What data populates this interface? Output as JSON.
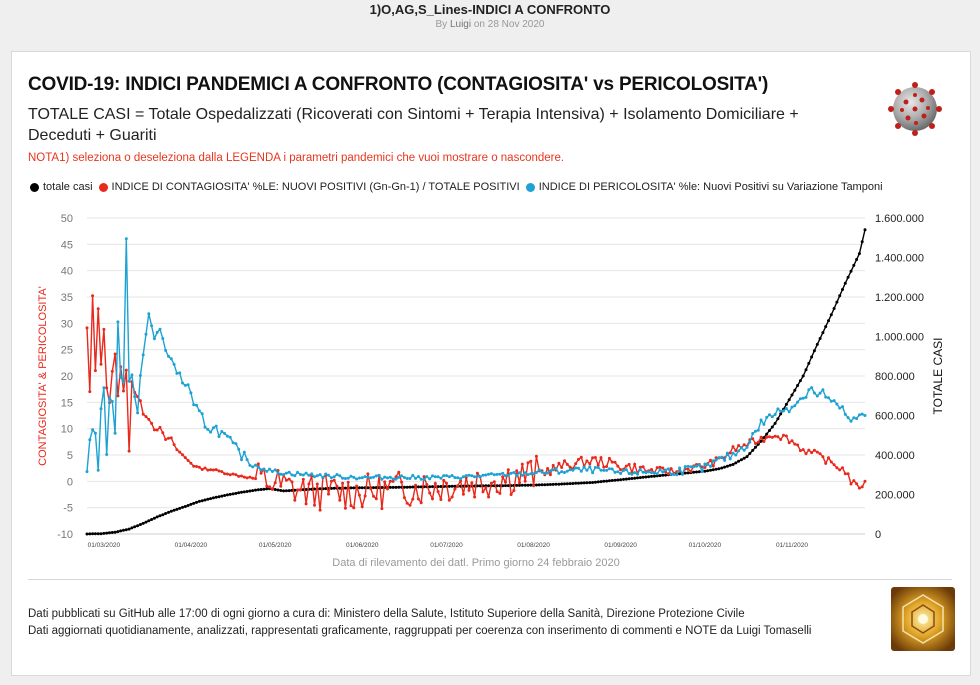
{
  "page": {
    "title": "1)O,AG,S_Lines-INDICI A CONFRONTO",
    "by_prefix": "By",
    "author": "Luigi",
    "date_text": "on 28 Nov 2020"
  },
  "card": {
    "title": "COVID-19: INDICI PANDEMICI A CONFRONTO (CONTAGIOSITA' vs PERICOLOSITA')",
    "subtitle": "TOTALE CASI = Totale Ospedalizzati (Ricoverati con Sintomi + Terapia Intensiva) + Isolamento Domiciliare + Deceduti + Guariti",
    "note": "NOTA1) seleziona o deseleziona dalla LEGENDA i parametri pandemici che vuoi mostrare o nascondere."
  },
  "legend": [
    {
      "label": "totale casi",
      "color": "#000000"
    },
    {
      "label": "INDICE DI CONTAGIOSITA' %LE: NUOVI POSITIVI (Gn-Gn-1) / TOTALE POSITIVI",
      "color": "#e8291c"
    },
    {
      "label": "INDICE DI PERICOLOSITA' %le: Nuovi Positivi su Variazione Tamponi",
      "color": "#1ea2d3"
    }
  ],
  "chart_data": {
    "type": "line",
    "title": "COVID-19: INDICI PANDEMICI A CONFRONTO (CONTAGIOSITA' vs PERICOLOSITA')",
    "xlabel": "Data di rilevamento dei datl. Primo giorno 24 febbraio 2020",
    "ylabel_left": "CONTAGIOSITA' & PERICOLOSITA'",
    "ylabel_right": "TOTALE CASI",
    "ylim_left": [
      -10,
      50
    ],
    "ylim_right": [
      0,
      1600000
    ],
    "yticks_left": [
      -10,
      -5,
      0,
      5,
      10,
      15,
      20,
      25,
      30,
      35,
      40,
      45,
      50
    ],
    "yticks_right": [
      {
        "value": 0,
        "label": "0"
      },
      {
        "value": 200000,
        "label": "200.000"
      },
      {
        "value": 400000,
        "label": "400.000"
      },
      {
        "value": 600000,
        "label": "600.000"
      },
      {
        "value": 800000,
        "label": "800.000"
      },
      {
        "value": 1000000,
        "label": "1.000.000"
      },
      {
        "value": 1200000,
        "label": "1.200.000"
      },
      {
        "value": 1400000,
        "label": "1.400.000"
      },
      {
        "value": 1600000,
        "label": "1.600.000"
      }
    ],
    "xlim_days": [
      0,
      277
    ],
    "xticks": [
      {
        "day": 6,
        "label": "01/03/2020"
      },
      {
        "day": 37,
        "label": "01/04/2020"
      },
      {
        "day": 67,
        "label": "01/05/2020"
      },
      {
        "day": 98,
        "label": "01/06/2020"
      },
      {
        "day": 128,
        "label": "01/07/2020"
      },
      {
        "day": 159,
        "label": "01/08/2020"
      },
      {
        "day": 190,
        "label": "01/09/2020"
      },
      {
        "day": 220,
        "label": "01/10/2020"
      },
      {
        "day": 251,
        "label": "01/11/2020"
      }
    ],
    "series": [
      {
        "name": "totale casi",
        "axis": "right",
        "color": "#000000",
        "keypoints": [
          [
            0,
            230
          ],
          [
            5,
            1700
          ],
          [
            10,
            9200
          ],
          [
            15,
            25000
          ],
          [
            20,
            53600
          ],
          [
            25,
            86500
          ],
          [
            30,
            115000
          ],
          [
            35,
            139400
          ],
          [
            40,
            165000
          ],
          [
            45,
            183000
          ],
          [
            50,
            198000
          ],
          [
            55,
            211000
          ],
          [
            60,
            222100
          ],
          [
            65,
            230000
          ],
          [
            70,
            218000
          ],
          [
            75,
            223000
          ],
          [
            80,
            227000
          ],
          [
            85,
            230000
          ],
          [
            90,
            232000
          ],
          [
            95,
            233500
          ],
          [
            100,
            234500
          ],
          [
            110,
            236000
          ],
          [
            120,
            239000
          ],
          [
            130,
            241500
          ],
          [
            140,
            243500
          ],
          [
            150,
            245000
          ],
          [
            160,
            248000
          ],
          [
            170,
            253500
          ],
          [
            180,
            261000
          ],
          [
            190,
            275000
          ],
          [
            200,
            290000
          ],
          [
            210,
            304000
          ],
          [
            220,
            318000
          ],
          [
            225,
            330000
          ],
          [
            230,
            352000
          ],
          [
            235,
            392000
          ],
          [
            240,
            470000
          ],
          [
            245,
            560000
          ],
          [
            250,
            680000
          ],
          [
            255,
            800000
          ],
          [
            260,
            960000
          ],
          [
            265,
            1110000
          ],
          [
            270,
            1270000
          ],
          [
            275,
            1420000
          ],
          [
            277,
            1540000
          ]
        ]
      },
      {
        "name": "INDICE DI CONTAGIOSITA' %LE: NUOVI POSITIVI (Gn-Gn-1) / TOTALE POSITIVI",
        "axis": "left",
        "color": "#e8291c",
        "keypoints": [
          [
            0,
            29
          ],
          [
            1,
            17
          ],
          [
            2,
            35
          ],
          [
            3,
            21
          ],
          [
            4,
            33
          ],
          [
            5,
            22
          ],
          [
            6,
            29
          ],
          [
            7,
            18
          ],
          [
            8,
            15
          ],
          [
            9,
            21
          ],
          [
            10,
            24
          ],
          [
            11,
            16
          ],
          [
            12,
            22
          ],
          [
            13,
            17
          ],
          [
            14,
            21
          ],
          [
            15,
            6
          ],
          [
            16,
            19
          ],
          [
            17,
            17
          ],
          [
            18,
            16
          ],
          [
            19,
            15
          ],
          [
            20,
            13
          ],
          [
            22,
            12
          ],
          [
            24,
            10
          ],
          [
            26,
            10
          ],
          [
            28,
            8
          ],
          [
            30,
            8
          ],
          [
            32,
            6
          ],
          [
            34,
            5
          ],
          [
            36,
            4
          ],
          [
            38,
            3
          ],
          [
            40,
            2.5
          ],
          [
            45,
            2.2
          ],
          [
            50,
            1.5
          ],
          [
            55,
            1
          ],
          [
            60,
            0.5
          ],
          [
            65,
            0
          ],
          [
            70,
            -1
          ],
          [
            75,
            -1.5
          ],
          [
            80,
            -2
          ],
          [
            90,
            -2
          ],
          [
            100,
            -2
          ],
          [
            110,
            -1.5
          ],
          [
            120,
            -1
          ],
          [
            130,
            -0.5
          ],
          [
            140,
            0
          ],
          [
            150,
            0.8
          ],
          [
            160,
            1.5
          ],
          [
            165,
            2.2
          ],
          [
            170,
            3
          ],
          [
            175,
            3.5
          ],
          [
            180,
            4
          ],
          [
            185,
            3.5
          ],
          [
            190,
            3
          ],
          [
            195,
            2.5
          ],
          [
            200,
            2
          ],
          [
            205,
            2
          ],
          [
            210,
            1.8
          ],
          [
            215,
            2.5
          ],
          [
            220,
            3
          ],
          [
            225,
            4
          ],
          [
            230,
            6
          ],
          [
            235,
            7
          ],
          [
            240,
            8
          ],
          [
            245,
            9
          ],
          [
            250,
            8
          ],
          [
            255,
            6
          ],
          [
            260,
            5
          ],
          [
            265,
            3.5
          ],
          [
            270,
            2
          ],
          [
            272,
            0
          ],
          [
            274,
            -1
          ],
          [
            277,
            -0.5
          ]
        ],
        "noise": [
          [
            0,
            30,
            0.3
          ],
          [
            30,
            60,
            0.2
          ],
          [
            60,
            160,
            3.5
          ],
          [
            160,
            200,
            1.0
          ],
          [
            200,
            277,
            0.7
          ]
        ]
      },
      {
        "name": "INDICE DI PERICOLOSITA' %le: Nuovi Positivi su Variazione Tamponi",
        "axis": "left",
        "color": "#1ea2d3",
        "keypoints": [
          [
            0,
            2
          ],
          [
            1,
            8
          ],
          [
            2,
            10
          ],
          [
            3,
            9
          ],
          [
            4,
            2
          ],
          [
            5,
            14
          ],
          [
            6,
            18
          ],
          [
            7,
            5
          ],
          [
            8,
            16
          ],
          [
            9,
            15
          ],
          [
            10,
            9
          ],
          [
            11,
            30
          ],
          [
            12,
            20
          ],
          [
            13,
            19
          ],
          [
            14,
            46
          ],
          [
            15,
            19
          ],
          [
            16,
            20
          ],
          [
            17,
            16
          ],
          [
            18,
            13
          ],
          [
            19,
            20
          ],
          [
            20,
            24
          ],
          [
            22,
            32
          ],
          [
            24,
            27
          ],
          [
            26,
            29
          ],
          [
            28,
            25
          ],
          [
            30,
            23
          ],
          [
            32,
            21
          ],
          [
            34,
            19
          ],
          [
            36,
            18
          ],
          [
            38,
            14
          ],
          [
            40,
            13
          ],
          [
            42,
            11
          ],
          [
            44,
            10
          ],
          [
            46,
            10
          ],
          [
            48,
            9
          ],
          [
            50,
            8
          ],
          [
            55,
            5
          ],
          [
            60,
            3
          ],
          [
            65,
            2
          ],
          [
            70,
            1.6
          ],
          [
            80,
            1.2
          ],
          [
            90,
            0.9
          ],
          [
            100,
            0.7
          ],
          [
            110,
            0.8
          ],
          [
            120,
            0.7
          ],
          [
            130,
            0.8
          ],
          [
            140,
            1
          ],
          [
            150,
            1.3
          ],
          [
            160,
            1.6
          ],
          [
            170,
            2
          ],
          [
            180,
            2.2
          ],
          [
            190,
            1.6
          ],
          [
            200,
            1.8
          ],
          [
            210,
            2
          ],
          [
            220,
            2.5
          ],
          [
            225,
            4
          ],
          [
            230,
            5
          ],
          [
            235,
            7
          ],
          [
            240,
            11
          ],
          [
            245,
            13
          ],
          [
            250,
            14
          ],
          [
            255,
            16
          ],
          [
            258,
            18
          ],
          [
            260,
            16
          ],
          [
            262,
            17
          ],
          [
            265,
            15
          ],
          [
            268,
            14
          ],
          [
            270,
            13
          ],
          [
            272,
            11
          ],
          [
            274,
            12
          ],
          [
            277,
            12.5
          ]
        ],
        "noise": [
          [
            0,
            30,
            0.3
          ],
          [
            30,
            60,
            1.0
          ],
          [
            60,
            160,
            0.4
          ],
          [
            160,
            200,
            0.6
          ],
          [
            200,
            277,
            0.8
          ]
        ]
      }
    ]
  },
  "footer": {
    "line1": "Dati pubblicati su GitHub alle 17:00 di ogni giorno a cura di: Ministero della Salute, Istituto Superiore della Sanità, Direzione Protezione Civile",
    "line2": "Dati aggiornati quotidianamente, analizzati, rappresentati graficamente, raggruppati per coerenza con inserimento di commenti e NOTE da Luigi Tomaselli"
  }
}
